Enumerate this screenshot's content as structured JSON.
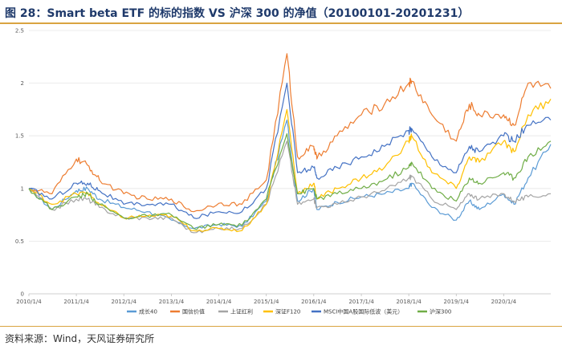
{
  "header": {
    "title": "图 28：Smart beta ETF 的标的指数  VS  沪深 300  的净值（20100101-20201231）"
  },
  "footer": {
    "source": "资料来源：Wind，天风证券研究所"
  },
  "chart_data": {
    "type": "line",
    "title": "",
    "xlabel": "",
    "ylabel": "",
    "ylim": [
      0,
      2.5
    ],
    "yticks": [
      "0",
      "0.5",
      "1",
      "1.5",
      "2",
      "2.5"
    ],
    "xticks": [
      "2010/1/4",
      "2011/1/4",
      "2012/1/4",
      "2013/1/4",
      "2014/1/4",
      "2015/1/4",
      "2016/1/4",
      "2017/1/4",
      "2018/1/4",
      "2019/1/4",
      "2020/1/4"
    ],
    "grid": "horizontal",
    "legend": "bottom",
    "x": [
      "2010/1/4",
      "2010/7/1",
      "2011/1/4",
      "2011/4/1",
      "2011/7/1",
      "2012/1/4",
      "2012/7/1",
      "2013/1/4",
      "2013/6/25",
      "2014/1/4",
      "2014/7/1",
      "2015/1/4",
      "2015/6/12",
      "2015/9/1",
      "2016/1/4",
      "2016/1/28",
      "2016/7/1",
      "2017/1/4",
      "2017/7/1",
      "2018/1/4",
      "2018/1/26",
      "2018/7/1",
      "2019/1/4",
      "2019/4/15",
      "2019/7/1",
      "2020/1/4",
      "2020/3/23",
      "2020/7/10",
      "2020/12/31"
    ],
    "series": [
      {
        "name": "成长40",
        "color": "#5b9bd5",
        "values": [
          1.0,
          0.8,
          0.98,
          1.0,
          0.9,
          0.82,
          0.78,
          0.7,
          0.62,
          0.66,
          0.64,
          0.88,
          1.65,
          0.88,
          1.0,
          0.8,
          0.87,
          0.92,
          0.95,
          1.0,
          1.05,
          0.82,
          0.7,
          0.88,
          0.8,
          0.95,
          0.85,
          1.1,
          1.42
        ]
      },
      {
        "name": "国信价值",
        "color": "#ed7d31",
        "values": [
          1.0,
          0.95,
          1.28,
          1.22,
          1.08,
          0.95,
          0.9,
          0.9,
          0.78,
          0.86,
          0.85,
          1.08,
          2.28,
          1.3,
          1.4,
          1.28,
          1.5,
          1.7,
          1.8,
          2.0,
          2.02,
          1.7,
          1.45,
          1.8,
          1.7,
          1.7,
          1.6,
          2.0,
          1.95
        ]
      },
      {
        "name": "上证红利",
        "color": "#a5a5a5",
        "values": [
          1.0,
          0.8,
          0.9,
          0.9,
          0.82,
          0.72,
          0.72,
          0.72,
          0.58,
          0.62,
          0.62,
          0.85,
          1.45,
          0.85,
          0.9,
          0.82,
          0.85,
          0.92,
          0.98,
          1.1,
          1.12,
          0.9,
          0.8,
          0.95,
          0.9,
          0.95,
          0.88,
          0.92,
          0.95
        ]
      },
      {
        "name": "深证F120",
        "color": "#ffc000",
        "values": [
          1.0,
          0.85,
          0.95,
          0.96,
          0.85,
          0.72,
          0.74,
          0.74,
          0.6,
          0.62,
          0.6,
          0.85,
          1.75,
          0.95,
          1.05,
          0.9,
          1.0,
          1.1,
          1.2,
          1.45,
          1.5,
          1.15,
          1.0,
          1.3,
          1.25,
          1.45,
          1.35,
          1.7,
          1.85
        ]
      },
      {
        "name": "MSCI中国A股国际低波（美元）",
        "color": "#4472c4",
        "values": [
          1.0,
          0.9,
          1.05,
          1.05,
          0.98,
          0.85,
          0.85,
          0.85,
          0.72,
          0.78,
          0.78,
          1.0,
          2.0,
          1.15,
          1.2,
          1.1,
          1.2,
          1.3,
          1.4,
          1.55,
          1.57,
          1.3,
          1.15,
          1.4,
          1.35,
          1.5,
          1.45,
          1.6,
          1.65
        ]
      },
      {
        "name": "沪深300",
        "color": "#70ad47",
        "values": [
          1.0,
          0.8,
          0.92,
          0.95,
          0.85,
          0.72,
          0.74,
          0.75,
          0.62,
          0.66,
          0.65,
          0.9,
          1.52,
          0.95,
          1.0,
          0.9,
          0.95,
          1.0,
          1.08,
          1.2,
          1.25,
          1.0,
          0.88,
          1.1,
          1.05,
          1.15,
          1.1,
          1.3,
          1.45
        ]
      }
    ]
  }
}
